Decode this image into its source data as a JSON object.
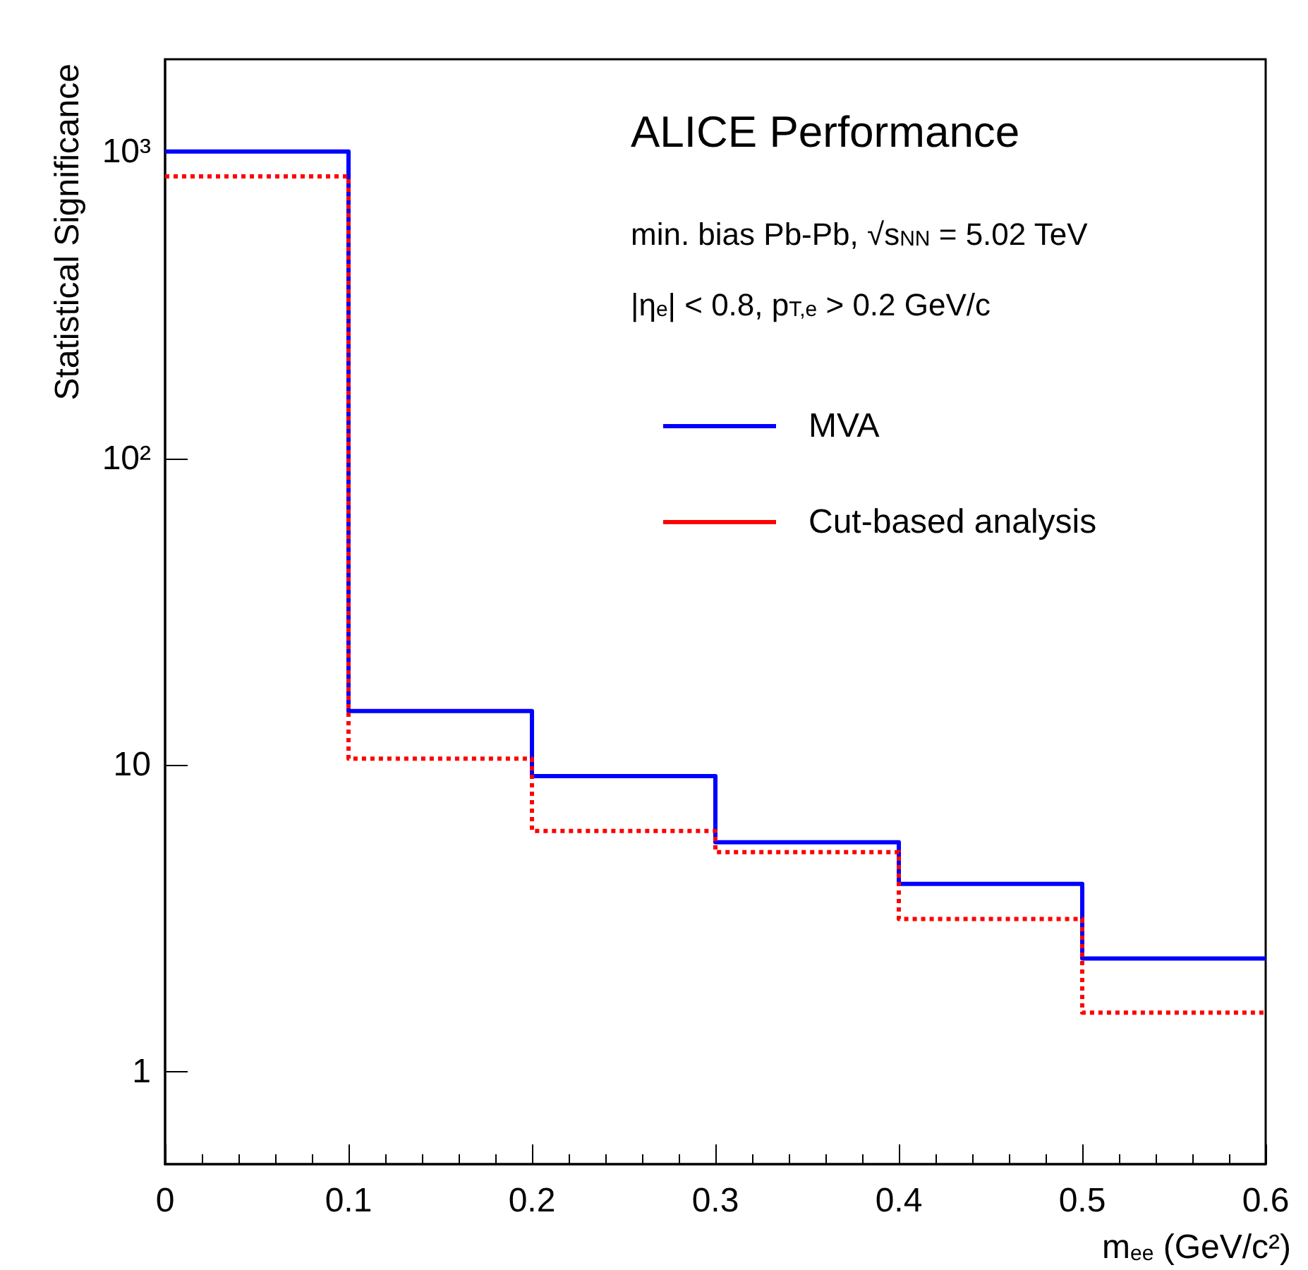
{
  "chart_data": {
    "type": "histogram",
    "xlabel": "m$_{ee}$ (GeV/c²)",
    "ylabel": "Statistical Significance",
    "bins": [
      0,
      0.1,
      0.2,
      0.3,
      0.4,
      0.5,
      0.6
    ],
    "series": [
      {
        "name": "MVA",
        "color": "#0000ff",
        "line_style": "solid",
        "values": [
          1000,
          15,
          9.2,
          5.6,
          4.1,
          2.34
        ]
      },
      {
        "name": "Cut-based analysis",
        "color": "#ff0000",
        "line_style": "dotted",
        "values": [
          830,
          10.5,
          6.1,
          5.2,
          3.15,
          1.56
        ]
      }
    ],
    "annotations": [
      "ALICE Performance",
      "min. bias Pb-Pb, √s$_{NN}$ = 5.02 TeV",
      "|η$_{e}$| < 0.8, p$_{T,e}$ > 0.2 GeV/c"
    ],
    "xlim": [
      0,
      0.6
    ],
    "xticks": [
      0,
      0.1,
      0.2,
      0.3,
      0.4,
      0.5,
      0.6
    ],
    "ylim": [
      0.5,
      2000
    ],
    "yticks": [
      1,
      10,
      {
        "value": 100,
        "label": "10²"
      },
      {
        "value": 1000,
        "label": "10³"
      }
    ],
    "log": "y",
    "legend": "top right",
    "grid": false
  }
}
